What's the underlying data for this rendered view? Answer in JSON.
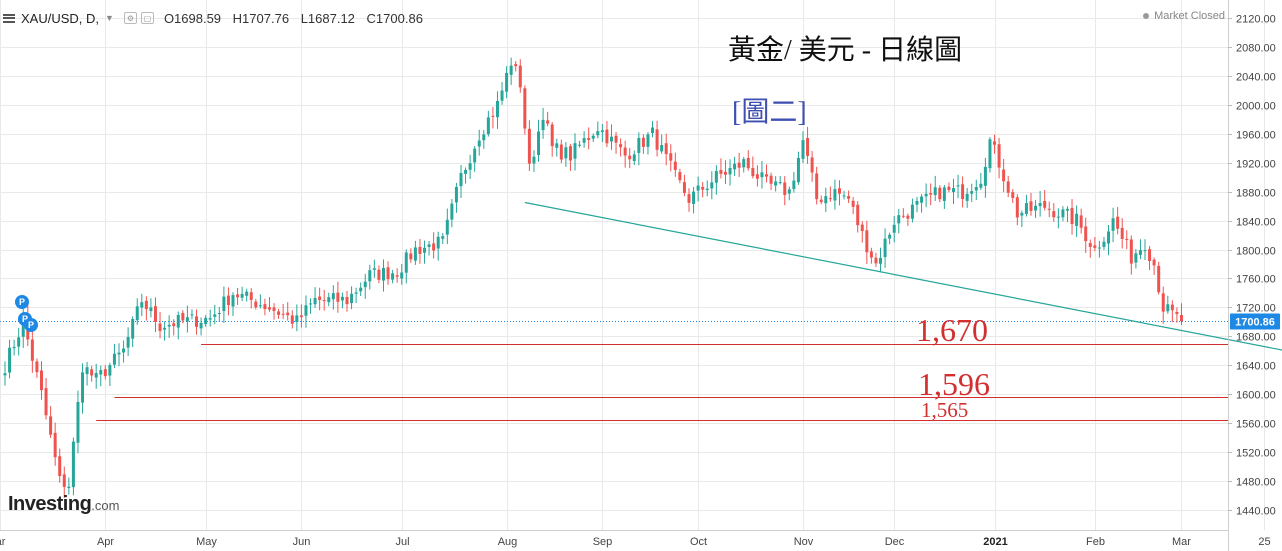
{
  "header": {
    "symbol": "XAU/USD, D,",
    "open": "O1698.59",
    "high": "H1707.76",
    "low": "L1687.12",
    "close": "C1700.86"
  },
  "status": "Market Closed",
  "overlay": {
    "title": "黃金/ 美元 - 日線圖",
    "subtitle": "[圖二]"
  },
  "logo": {
    "main": "Investing",
    "domain": ".com"
  },
  "markers": {
    "label": "P",
    "count": 3
  },
  "colors": {
    "up": "#26a69a",
    "down": "#ef5350",
    "level": "#d32f2f",
    "trend": "#26a69a",
    "price_tag": "#1e88e5",
    "grid": "#e9e9e9"
  },
  "chart_data": {
    "type": "candlestick",
    "ylim": [
      1420,
      2130
    ],
    "y_ticks": [
      1440,
      1480,
      1520,
      1560,
      1600,
      1640,
      1680,
      1720,
      1760,
      1800,
      1840,
      1880,
      1920,
      1960,
      2000,
      2040,
      2080,
      2120
    ],
    "x_ticks": [
      {
        "label": "ar",
        "day": -1
      },
      {
        "label": "Apr",
        "day": 22
      },
      {
        "label": "May",
        "day": 44
      },
      {
        "label": "Jun",
        "day": 65
      },
      {
        "label": "Jul",
        "day": 87
      },
      {
        "label": "Aug",
        "day": 110
      },
      {
        "label": "Sep",
        "day": 131
      },
      {
        "label": "Oct",
        "day": 152
      },
      {
        "label": "Nov",
        "day": 175
      },
      {
        "label": "Dec",
        "day": 195
      },
      {
        "label": "2021",
        "day": 217
      },
      {
        "label": "Feb",
        "day": 239
      },
      {
        "label": "Mar",
        "day": 258
      },
      {
        "label": "25",
        "day": 276
      }
    ],
    "anchors": [
      {
        "day": 0,
        "price": 1640
      },
      {
        "day": 4,
        "price": 1700
      },
      {
        "day": 8,
        "price": 1600
      },
      {
        "day": 12,
        "price": 1480
      },
      {
        "day": 14,
        "price": 1475
      },
      {
        "day": 17,
        "price": 1640
      },
      {
        "day": 20,
        "price": 1620
      },
      {
        "day": 26,
        "price": 1660
      },
      {
        "day": 30,
        "price": 1730
      },
      {
        "day": 34,
        "price": 1695
      },
      {
        "day": 38,
        "price": 1700
      },
      {
        "day": 45,
        "price": 1705
      },
      {
        "day": 50,
        "price": 1740
      },
      {
        "day": 58,
        "price": 1720
      },
      {
        "day": 64,
        "price": 1700
      },
      {
        "day": 68,
        "price": 1730
      },
      {
        "day": 75,
        "price": 1730
      },
      {
        "day": 80,
        "price": 1765
      },
      {
        "day": 86,
        "price": 1770
      },
      {
        "day": 90,
        "price": 1800
      },
      {
        "day": 96,
        "price": 1810
      },
      {
        "day": 100,
        "price": 1900
      },
      {
        "day": 104,
        "price": 1960
      },
      {
        "day": 108,
        "price": 2000
      },
      {
        "day": 111,
        "price": 2060
      },
      {
        "day": 113,
        "price": 2030
      },
      {
        "day": 115,
        "price": 1910
      },
      {
        "day": 118,
        "price": 1990
      },
      {
        "day": 120,
        "price": 1940
      },
      {
        "day": 124,
        "price": 1930
      },
      {
        "day": 130,
        "price": 1970
      },
      {
        "day": 136,
        "price": 1930
      },
      {
        "day": 142,
        "price": 1960
      },
      {
        "day": 147,
        "price": 1900
      },
      {
        "day": 150,
        "price": 1870
      },
      {
        "day": 156,
        "price": 1900
      },
      {
        "day": 162,
        "price": 1920
      },
      {
        "day": 167,
        "price": 1890
      },
      {
        "day": 172,
        "price": 1880
      },
      {
        "day": 175,
        "price": 1950
      },
      {
        "day": 178,
        "price": 1870
      },
      {
        "day": 182,
        "price": 1880
      },
      {
        "day": 185,
        "price": 1870
      },
      {
        "day": 188,
        "price": 1820
      },
      {
        "day": 191,
        "price": 1780
      },
      {
        "day": 195,
        "price": 1840
      },
      {
        "day": 200,
        "price": 1860
      },
      {
        "day": 205,
        "price": 1880
      },
      {
        "day": 210,
        "price": 1880
      },
      {
        "day": 214,
        "price": 1900
      },
      {
        "day": 216,
        "price": 1950
      },
      {
        "day": 218,
        "price": 1920
      },
      {
        "day": 222,
        "price": 1850
      },
      {
        "day": 228,
        "price": 1860
      },
      {
        "day": 235,
        "price": 1840
      },
      {
        "day": 239,
        "price": 1800
      },
      {
        "day": 243,
        "price": 1840
      },
      {
        "day": 247,
        "price": 1790
      },
      {
        "day": 250,
        "price": 1810
      },
      {
        "day": 252,
        "price": 1780
      },
      {
        "day": 254,
        "price": 1720
      },
      {
        "day": 256,
        "price": 1710
      },
      {
        "day": 258,
        "price": 1700
      }
    ],
    "last_price": 1700.86,
    "last_price_label": "1700.86",
    "levels": [
      {
        "value": 1670,
        "label": "1,670",
        "start_day": 43
      },
      {
        "value": 1596,
        "label": "1,596",
        "start_day": 24
      },
      {
        "value": 1565,
        "label": "1,565",
        "start_day": 20
      }
    ],
    "trendline": {
      "start_day": 114,
      "start_price": 1865,
      "end_day": 285,
      "end_price": 1655
    }
  }
}
